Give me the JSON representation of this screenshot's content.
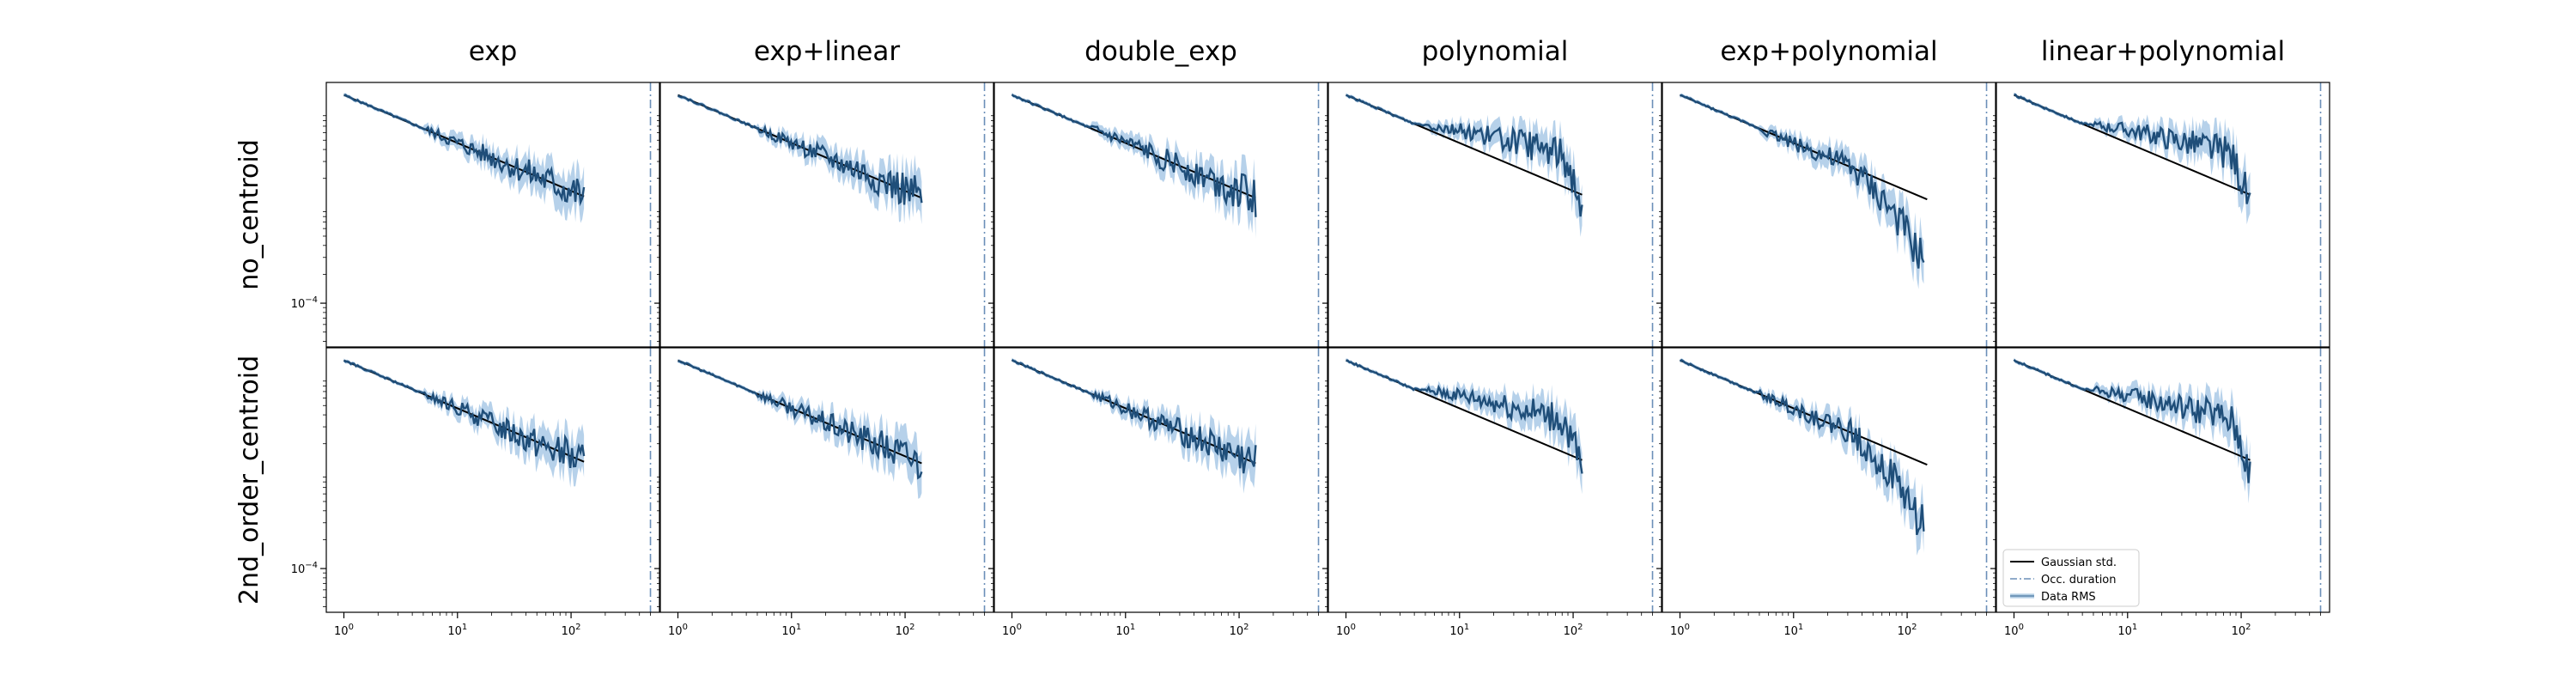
{
  "chart_data": {
    "type": "line",
    "xscale": "log",
    "yscale": "log",
    "xlim": [
      0.7,
      600
    ],
    "ylim": [
      3.5e-05,
      0.02
    ],
    "column_titles": [
      "exp",
      "exp+linear",
      "double_exp",
      "polynomial",
      "exp+polynomial",
      "linear+polynomial"
    ],
    "row_titles": [
      "no_centroid",
      "2nd_order_centroid"
    ],
    "x_tick_labels": [
      "10^0",
      "10^1",
      "10^2"
    ],
    "y_tick_labels": [
      "10^-4"
    ],
    "occ_duration_x": 500,
    "legend": {
      "placement": "lower-left",
      "entries": [
        "Gaussian std.",
        "Occ. duration",
        "Data RMS"
      ]
    },
    "colors": {
      "gaussian": "#000000",
      "occ_duration": "#6b8fb8",
      "rms_line": "#1f4e79",
      "rms_band": "#a9c9e6"
    },
    "series_description": {
      "gaussian_start": [
        1,
        0.0148
      ],
      "gaussian_slope": -0.5,
      "x_max": 150
    },
    "panels": [
      {
        "row": 0,
        "col": 0,
        "rms_shape": "follows",
        "x_end": 130,
        "x_gauss_end": 130
      },
      {
        "row": 0,
        "col": 1,
        "rms_shape": "follows",
        "x_end": 140,
        "x_gauss_end": 140
      },
      {
        "row": 0,
        "col": 2,
        "rms_shape": "follows",
        "x_end": 140,
        "x_gauss_end": 140
      },
      {
        "row": 0,
        "col": 3,
        "rms_shape": "above",
        "x_end": 120,
        "x_gauss_end": 120
      },
      {
        "row": 0,
        "col": 4,
        "rms_shape": "below",
        "x_end": 140,
        "x_gauss_end": 150
      },
      {
        "row": 0,
        "col": 5,
        "rms_shape": "above",
        "x_end": 120,
        "x_gauss_end": 120
      },
      {
        "row": 1,
        "col": 0,
        "rms_shape": "follows",
        "x_end": 130,
        "x_gauss_end": 130
      },
      {
        "row": 1,
        "col": 1,
        "rms_shape": "follows",
        "x_end": 140,
        "x_gauss_end": 140
      },
      {
        "row": 1,
        "col": 2,
        "rms_shape": "follows",
        "x_end": 140,
        "x_gauss_end": 140
      },
      {
        "row": 1,
        "col": 3,
        "rms_shape": "above",
        "x_end": 120,
        "x_gauss_end": 120
      },
      {
        "row": 1,
        "col": 4,
        "rms_shape": "below",
        "x_end": 140,
        "x_gauss_end": 150
      },
      {
        "row": 1,
        "col": 5,
        "rms_shape": "above",
        "x_end": 120,
        "x_gauss_end": 120
      }
    ]
  }
}
